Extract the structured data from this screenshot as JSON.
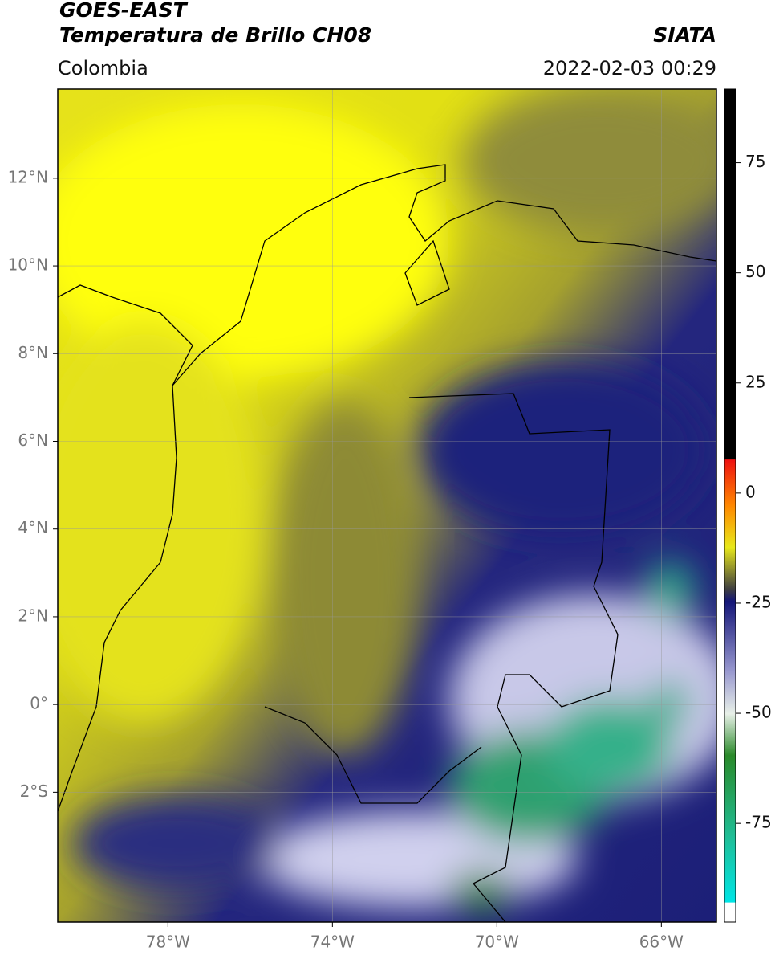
{
  "header": {
    "title": "GOES-EAST",
    "subtitle": "Temperatura de Brillo CH08",
    "region": "Colombia",
    "source": "SIATA",
    "datetime": "2022-02-03 00:29"
  },
  "map": {
    "xlim": [
      -80.68,
      -64.66
    ],
    "ylim": [
      -4.96,
      14.03
    ],
    "xticks": [
      {
        "value": -78,
        "label": "78°W"
      },
      {
        "value": -74,
        "label": "74°W"
      },
      {
        "value": -70,
        "label": "70°W"
      },
      {
        "value": -66,
        "label": "66°W"
      }
    ],
    "yticks": [
      {
        "value": 12,
        "label": "12°N"
      },
      {
        "value": 10,
        "label": "10°N"
      },
      {
        "value": 8,
        "label": "8°N"
      },
      {
        "value": 6,
        "label": "6°N"
      },
      {
        "value": 4,
        "label": "4°N"
      },
      {
        "value": 2,
        "label": "2°N"
      },
      {
        "value": 0,
        "label": "0°"
      },
      {
        "value": -2,
        "label": "2°S"
      }
    ],
    "grid": true
  },
  "colorbar": {
    "lim": [
      -97.4,
      91.7
    ],
    "ticks": [
      75,
      50,
      25,
      0,
      -25,
      -50,
      -75
    ]
  }
}
